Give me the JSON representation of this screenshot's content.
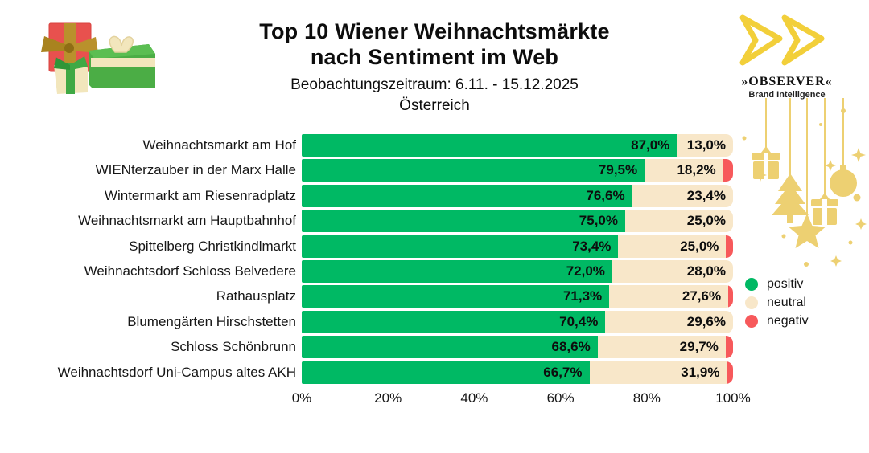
{
  "header": {
    "title_line1": "Top 10 Wiener Weihnachtsmärkte",
    "title_line2": "nach Sentiment im Web",
    "subtitle": "Beobachtungszeitraum: 6.11. - 15.12.2025",
    "region": "Österreich"
  },
  "logo": {
    "name": "»OBSERVER«",
    "tagline": "Brand Intelligence"
  },
  "colors": {
    "positive": "#00B964",
    "neutral": "#F8E7C9",
    "negative": "#F7595B",
    "gold": "#F2CF3A",
    "decor_gold": "#EDD072",
    "text": "#0d0d0d"
  },
  "legend": [
    {
      "label": "positiv",
      "color": "#00B964"
    },
    {
      "label": "neutral",
      "color": "#F8E7C9"
    },
    {
      "label": "negativ",
      "color": "#F7595B"
    }
  ],
  "chart_data": {
    "type": "bar",
    "orientation": "horizontal",
    "stacked": true,
    "title": "Top 10 Wiener Weihnachtsmärkte nach Sentiment im Web",
    "xlabel": "",
    "ylabel": "",
    "xlim": [
      0,
      100
    ],
    "grid": false,
    "legend_position": "right",
    "x_ticks": [
      "0%",
      "20%",
      "40%",
      "60%",
      "80%",
      "100%"
    ],
    "categories": [
      "Weihnachtsmarkt am Hof",
      "WIENterzauber in der Marx Halle",
      "Wintermarkt am Riesenradplatz",
      "Weihnachtsmarkt am Hauptbahnhof",
      "Spittelberg Christkindlmarkt",
      "Weihnachtsdorf Schloss Belvedere",
      "Rathausplatz",
      "Blumengärten Hirschstetten",
      "Schloss Schönbrunn",
      "Weihnachtsdorf Uni-Campus altes AKH"
    ],
    "series": [
      {
        "name": "positiv",
        "color": "#00B964",
        "values": [
          87.0,
          79.5,
          76.6,
          75.0,
          73.4,
          72.0,
          71.3,
          70.4,
          68.6,
          66.7
        ],
        "labels": [
          "87,0%",
          "79,5%",
          "76,6%",
          "75,0%",
          "73,4%",
          "72,0%",
          "71,3%",
          "70,4%",
          "68,6%",
          "66,7%"
        ]
      },
      {
        "name": "neutral",
        "color": "#F8E7C9",
        "values": [
          13.0,
          18.2,
          23.4,
          25.0,
          25.0,
          28.0,
          27.6,
          29.6,
          29.7,
          31.9
        ],
        "labels": [
          "13,0%",
          "18,2%",
          "23,4%",
          "25,0%",
          "25,0%",
          "28,0%",
          "27,6%",
          "29,6%",
          "29,7%",
          "31,9%"
        ]
      },
      {
        "name": "negativ",
        "color": "#F7595B",
        "values": [
          0,
          2.3,
          0,
          0,
          1.6,
          0,
          1.1,
          0,
          1.7,
          1.4
        ],
        "labels": [
          "",
          "",
          "",
          "",
          "",
          "",
          "",
          "",
          "",
          ""
        ]
      }
    ]
  }
}
